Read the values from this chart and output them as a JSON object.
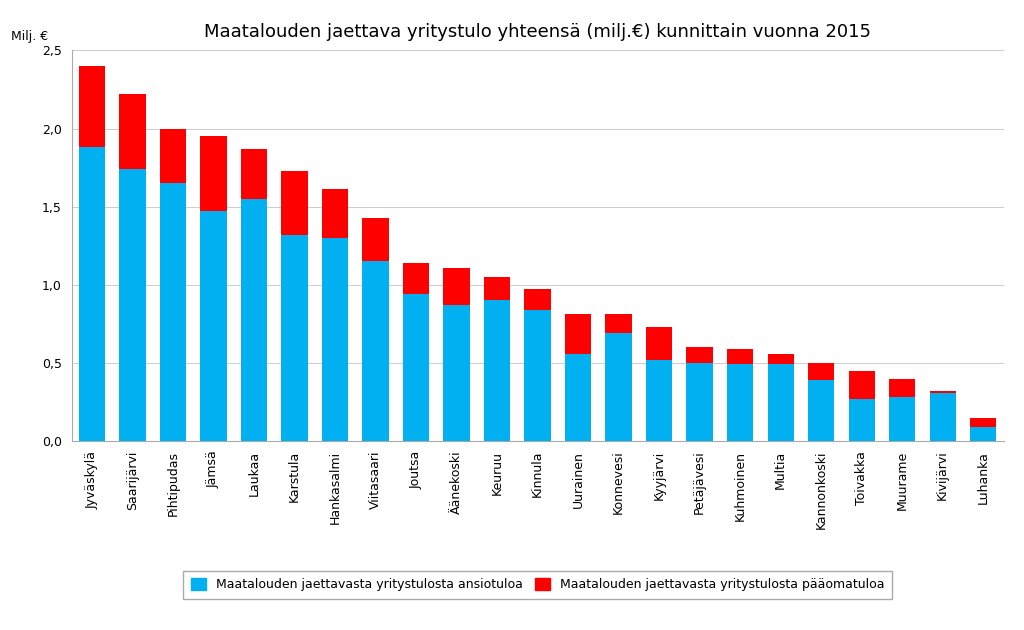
{
  "title": "Maatalouden jaettava yritystulo yhteensä (milj.€) kunnittain vuonna 2015",
  "ylabel_text": "Milj. €",
  "categories": [
    "Jyväskylä",
    "Saarijärvi",
    "Pihtipudas",
    "Jämsä",
    "Laukaa",
    "Karstula",
    "Hankasalmi",
    "Viitasaari",
    "Joutsa",
    "Äänekoski",
    "Keuruu",
    "Kinnula",
    "Uurainen",
    "Konnevesi",
    "Kyyjärvi",
    "Petäjävesi",
    "Kuhmoinen",
    "Multia",
    "Kannonkoski",
    "Toivakka",
    "Muurame",
    "Kivijärvi",
    "Luhanka"
  ],
  "ansiotulo": [
    1.88,
    1.74,
    1.65,
    1.47,
    1.55,
    1.32,
    1.3,
    1.15,
    0.94,
    0.87,
    0.9,
    0.84,
    0.56,
    0.69,
    0.52,
    0.5,
    0.49,
    0.49,
    0.39,
    0.27,
    0.28,
    0.31,
    0.09
  ],
  "paaomatulo": [
    0.52,
    0.48,
    0.35,
    0.48,
    0.32,
    0.41,
    0.31,
    0.28,
    0.2,
    0.24,
    0.15,
    0.13,
    0.25,
    0.12,
    0.21,
    0.1,
    0.1,
    0.07,
    0.11,
    0.18,
    0.12,
    0.01,
    0.06
  ],
  "color_ansiotulo": "#00B0F0",
  "color_paaomatulo": "#FF0000",
  "ylim": [
    0,
    2.5
  ],
  "yticks": [
    0.0,
    0.5,
    1.0,
    1.5,
    2.0,
    2.5
  ],
  "ytick_labels": [
    "0,0",
    "0,5",
    "1,0",
    "1,5",
    "2,0",
    "2,5"
  ],
  "legend_ansiotulo": "Maatalouden jaettavasta yritystulosta ansiotuloa",
  "legend_paaomatulo": "Maatalouden jaettavasta yritystulosta pääomatuloa",
  "background_color": "#FFFFFF",
  "grid_color": "#CCCCCC",
  "title_fontsize": 13,
  "tick_fontsize": 9,
  "legend_fontsize": 9
}
